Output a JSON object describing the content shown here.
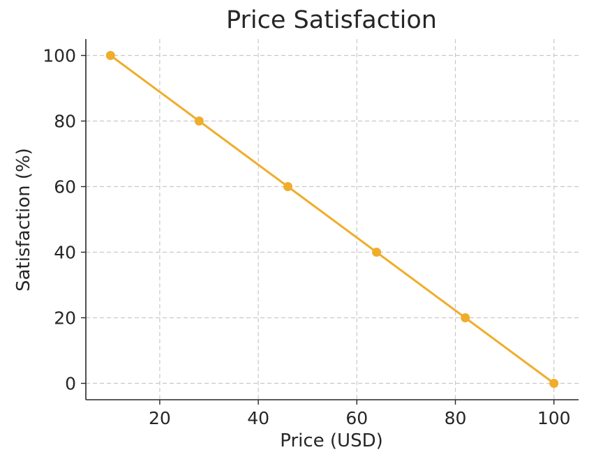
{
  "chart_data": {
    "type": "line",
    "title": "Price Satisfaction",
    "xlabel": "Price (USD)",
    "ylabel": "Satisfaction (%)",
    "xlim": [
      5,
      105
    ],
    "ylim": [
      -5,
      105
    ],
    "xticks": [
      20,
      40,
      60,
      80,
      100
    ],
    "yticks": [
      0,
      20,
      40,
      60,
      80,
      100
    ],
    "grid": true,
    "series": [
      {
        "color": "#f0ad2b",
        "marker": "circle",
        "x": [
          10,
          28,
          46,
          64,
          82,
          100
        ],
        "y": [
          100,
          80,
          60,
          40,
          20,
          0
        ]
      }
    ]
  }
}
